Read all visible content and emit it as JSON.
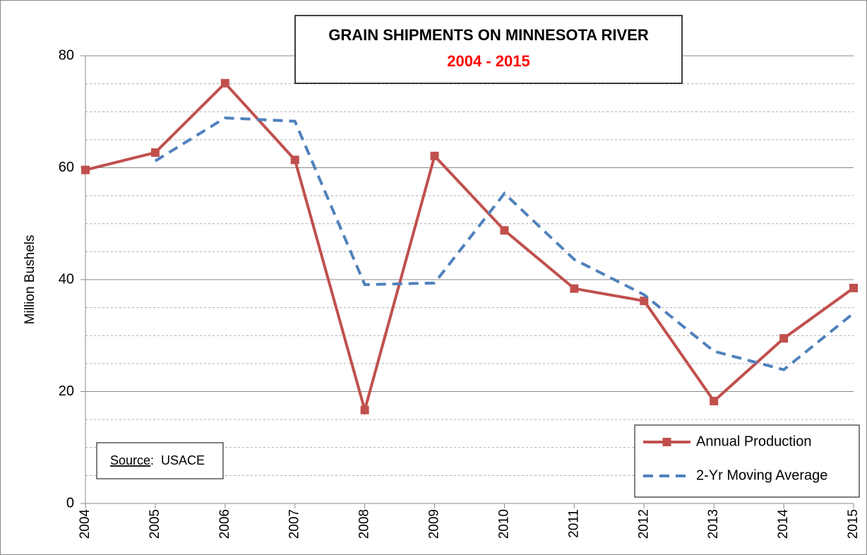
{
  "chart_data": {
    "type": "line",
    "title": "GRAIN SHIPMENTS ON MINNESOTA RIVER",
    "subtitle": "2004 - 2015",
    "y_label": "Million Bushels",
    "categories": [
      "2004",
      "2005",
      "2006",
      "2007",
      "2008",
      "2009",
      "2010",
      "2011",
      "2012",
      "2013",
      "2014",
      "2015"
    ],
    "series": [
      {
        "name": "Annual Production",
        "color": "#c0504d",
        "style": "solid",
        "marker": "square",
        "values": [
          59.6,
          62.7,
          75.1,
          61.4,
          16.7,
          62.1,
          48.8,
          38.4,
          36.2,
          18.3,
          29.5,
          38.5
        ]
      },
      {
        "name": "2-Yr Moving Average",
        "color": "#4f81bd",
        "style": "dashed",
        "values": [
          null,
          61.2,
          68.9,
          68.3,
          39.1,
          39.4,
          55.4,
          43.6,
          37.3,
          27.2,
          23.9,
          34.0
        ]
      }
    ],
    "ylim": [
      0,
      80
    ],
    "yticks": [
      0,
      20,
      40,
      60,
      80
    ],
    "yminor": [
      5,
      10,
      15,
      25,
      30,
      35,
      45,
      50,
      55,
      65,
      70,
      75
    ],
    "grid": true,
    "legend": "lower right",
    "source_label": "Source",
    "source_text": ":  USACE"
  }
}
